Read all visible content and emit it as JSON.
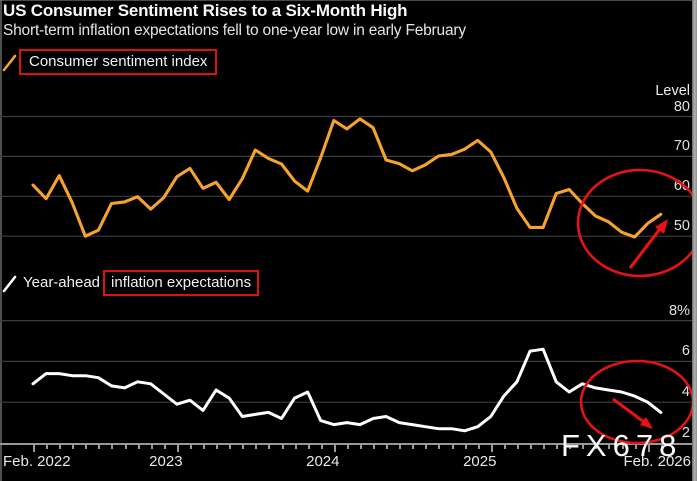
{
  "header": {
    "title": "US Consumer Sentiment Rises to a Six-Month High",
    "subtitle": "Short-term inflation expectations fell to one-year low in early February"
  },
  "watermark": "FX678",
  "colors": {
    "background": "#000000",
    "sentiment_line": "#f5a32e",
    "inflation_line": "#ffffff",
    "highlight_box_red": "#dd1111",
    "annotation_red": "#e41414",
    "gridline": "#3d3d3d",
    "axis": "#999999"
  },
  "x_axis": {
    "start_label": "Feb. 2022",
    "year_labels": [
      "2023",
      "2024",
      "2025"
    ],
    "end_label": "Feb. 2026",
    "months_total": 49
  },
  "chart_data": [
    {
      "type": "line",
      "title": "Consumer sentiment index",
      "legend": {
        "boxed_text": "Consumer sentiment index"
      },
      "unit_label": "Level",
      "color": "#f5a32e",
      "x_start": "Feb 2022",
      "x_end": "Feb 2026",
      "x_step": "monthly",
      "yticks": [
        80,
        70,
        60,
        50
      ],
      "ytick_labels": [
        "80",
        "70",
        "60",
        "50"
      ],
      "ylim": [
        45,
        85
      ],
      "values": [
        62.8,
        59.4,
        65.2,
        58.4,
        50.0,
        51.5,
        58.2,
        58.6,
        59.9,
        56.8,
        59.7,
        64.9,
        67.0,
        62.0,
        63.5,
        59.2,
        64.4,
        71.6,
        69.5,
        68.1,
        63.8,
        61.3,
        69.7,
        79.0,
        76.9,
        79.4,
        77.2,
        69.1,
        68.2,
        66.4,
        67.9,
        70.1,
        70.5,
        71.8,
        74.0,
        71.1,
        64.7,
        57.0,
        52.2,
        52.2,
        60.7,
        61.7,
        58.2,
        55.1,
        53.6,
        51.0,
        49.8,
        53.2,
        55.5
      ]
    },
    {
      "type": "line",
      "title": "Year-ahead inflation expectations",
      "legend": {
        "prefix_text": "Year-ahead",
        "boxed_text": "inflation expectations"
      },
      "unit_label": "",
      "color": "#ffffff",
      "x_start": "Feb 2022",
      "x_end": "Feb 2026",
      "x_step": "monthly",
      "yticks": [
        8,
        6,
        4,
        2
      ],
      "ytick_labels": [
        "8%",
        "6",
        "4",
        "2"
      ],
      "ylim": [
        1.5,
        8.5
      ],
      "values": [
        4.9,
        5.4,
        5.4,
        5.3,
        5.3,
        5.2,
        4.8,
        4.7,
        5.0,
        4.9,
        4.4,
        3.9,
        4.1,
        3.6,
        4.6,
        4.2,
        3.3,
        3.4,
        3.5,
        3.2,
        4.2,
        4.5,
        3.1,
        2.9,
        3.0,
        2.9,
        3.2,
        3.3,
        3.0,
        2.9,
        2.8,
        2.7,
        2.7,
        2.6,
        2.8,
        3.3,
        4.3,
        5.0,
        6.5,
        6.6,
        5.0,
        4.5,
        4.9,
        4.7,
        4.6,
        4.5,
        4.3,
        4.0,
        3.5
      ]
    }
  ],
  "annotations": {
    "color": "#e41414",
    "items": [
      "circle-highlight-sentiment-upturn",
      "arrow-up-sentiment",
      "circle-highlight-inflation-drop",
      "arrow-down-inflation"
    ]
  }
}
